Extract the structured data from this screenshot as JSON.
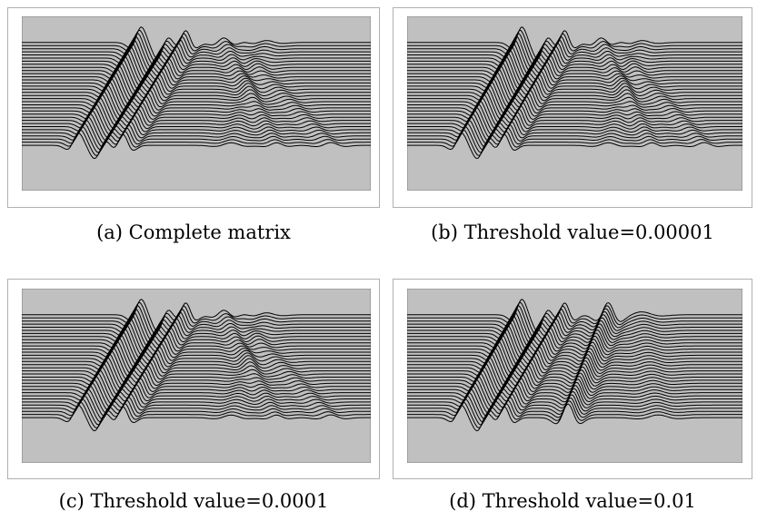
{
  "figure": {
    "panels": [
      {
        "id": "a",
        "caption": "(a) Complete matrix",
        "variant": "full"
      },
      {
        "id": "b",
        "caption": "(b) Threshold value=0.00001",
        "variant": "full"
      },
      {
        "id": "c",
        "caption": "(c) Threshold value=0.0001",
        "variant": "full"
      },
      {
        "id": "d",
        "caption": "(d) Threshold value=0.01",
        "variant": "reduced"
      }
    ],
    "trace_count": 34,
    "colors": {
      "background": "#c0c0c0",
      "trace": "#000000",
      "frame": "#b0b0b0"
    }
  }
}
